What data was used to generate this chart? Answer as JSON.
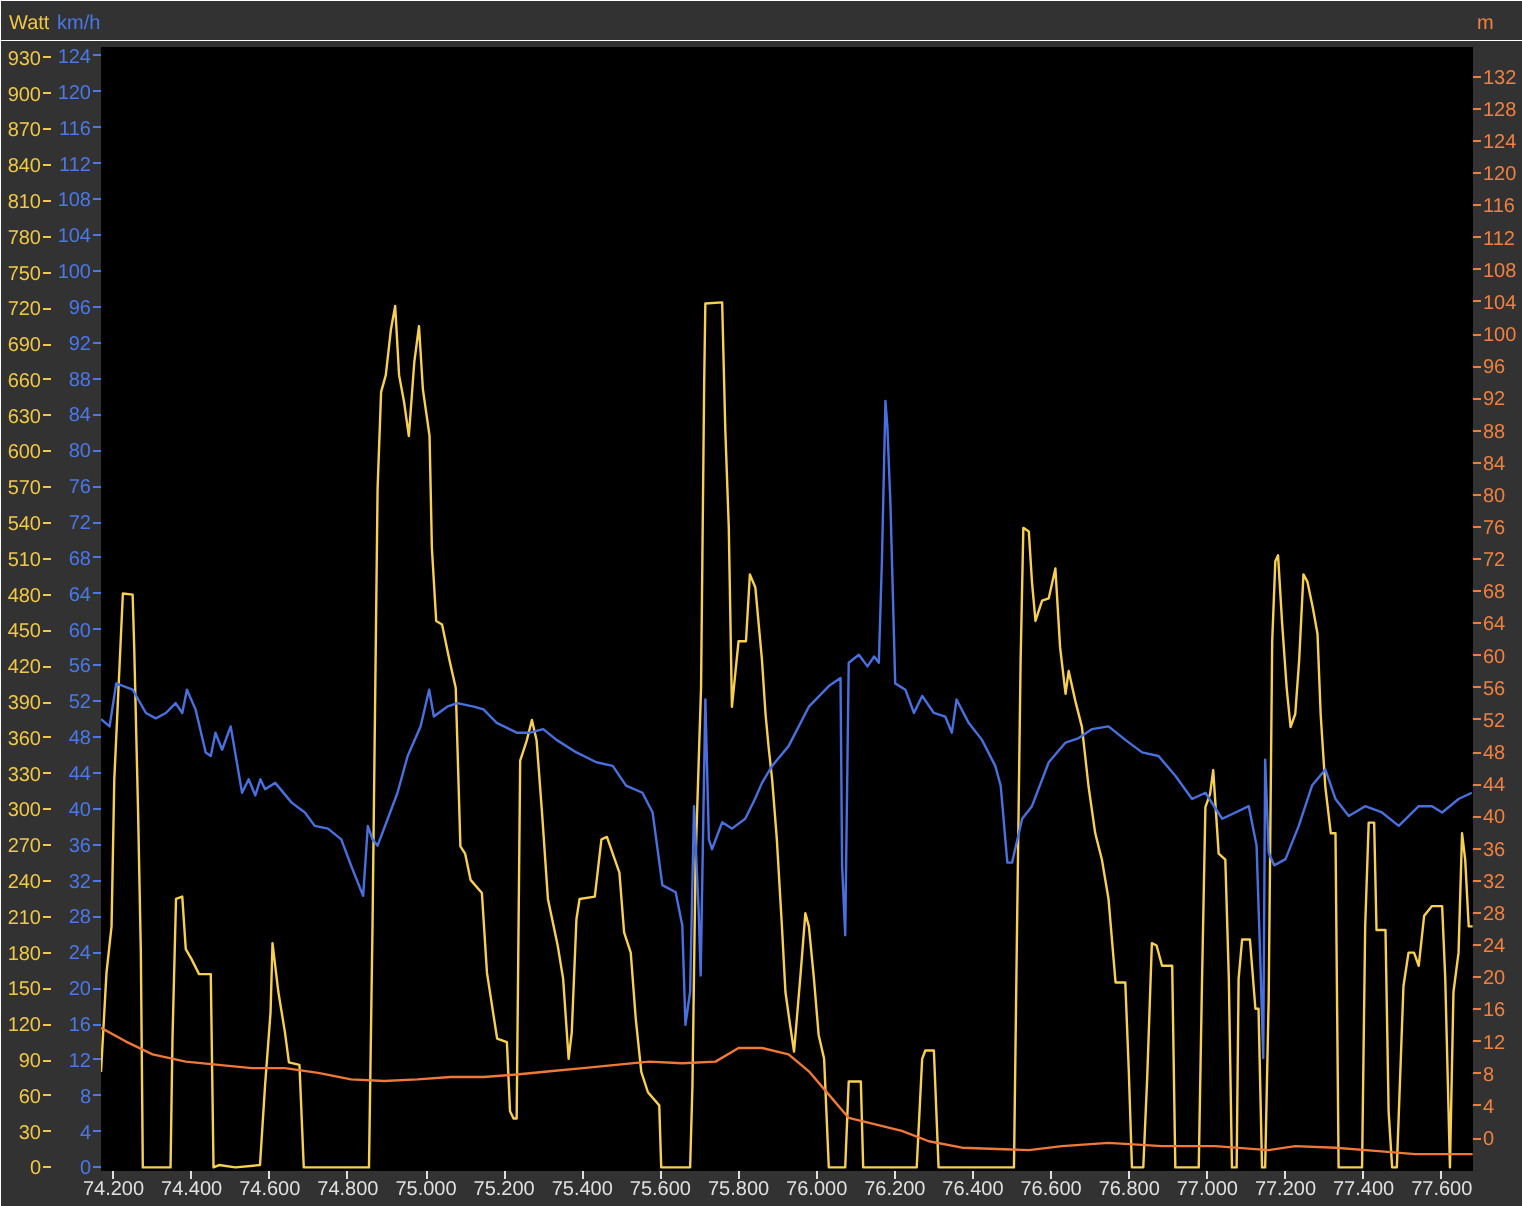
{
  "chart_data": {
    "type": "line",
    "ylabel": "Watt",
    "y2label": "km/h",
    "y3label": "m",
    "grid": false,
    "xlim": [
      74168,
      77680
    ],
    "xticks": [
      {
        "value": 74200,
        "label": "74.200"
      },
      {
        "value": 74400,
        "label": "74.400"
      },
      {
        "value": 74600,
        "label": "74.600"
      },
      {
        "value": 74800,
        "label": "74.800"
      },
      {
        "value": 75000,
        "label": "75.000"
      },
      {
        "value": 75200,
        "label": "75.200"
      },
      {
        "value": 75400,
        "label": "75.400"
      },
      {
        "value": 75600,
        "label": "75.600"
      },
      {
        "value": 75800,
        "label": "75.800"
      },
      {
        "value": 76000,
        "label": "76.000"
      },
      {
        "value": 76200,
        "label": "76.200"
      },
      {
        "value": 76400,
        "label": "76.400"
      },
      {
        "value": 76600,
        "label": "76.600"
      },
      {
        "value": 76800,
        "label": "76.800"
      },
      {
        "value": 77000,
        "label": "77.000"
      },
      {
        "value": 77200,
        "label": "77.200"
      },
      {
        "value": 77400,
        "label": "77.400"
      },
      {
        "value": 77600,
        "label": "77.600"
      }
    ],
    "ylim": [
      -3,
      939
    ],
    "yticks": [
      0,
      30,
      60,
      90,
      120,
      150,
      180,
      210,
      240,
      270,
      300,
      330,
      360,
      390,
      420,
      450,
      480,
      510,
      540,
      570,
      600,
      630,
      660,
      690,
      720,
      750,
      780,
      810,
      840,
      870,
      900,
      930
    ],
    "y2lim": [
      -0.4,
      125
    ],
    "y2ticks": [
      0,
      4,
      8,
      12,
      16,
      20,
      24,
      28,
      32,
      36,
      40,
      44,
      48,
      52,
      56,
      60,
      64,
      68,
      72,
      76,
      80,
      84,
      88,
      92,
      96,
      100,
      104,
      108,
      112,
      116,
      120,
      124
    ],
    "y3lim": [
      -4.1,
      135.7
    ],
    "y3ticks": [
      0,
      4,
      8,
      12,
      16,
      20,
      24,
      28,
      32,
      36,
      40,
      44,
      48,
      52,
      56,
      60,
      64,
      68,
      72,
      76,
      80,
      84,
      88,
      92,
      96,
      100,
      104,
      108,
      112,
      116,
      120,
      124,
      128,
      132
    ],
    "series": [
      {
        "axis": "y",
        "color": "#f8d050",
        "x": [
          74168,
          74182,
          74195,
          74202,
          74224,
          74249,
          74253,
          74263,
          74270,
          74275,
          74346,
          74351,
          74360,
          74376,
          74385,
          74399,
          74419,
          74449,
          74456,
          74470,
          74512,
          74575,
          74588,
          74602,
          74607,
          74622,
          74639,
          74649,
          74676,
          74687,
          74854,
          74863,
          74876,
          74885,
          74897,
          74910,
          74921,
          74931,
          74944,
          74956,
          74970,
          74982,
          74992,
          75009,
          75015,
          75026,
          75041,
          75060,
          75076,
          75088,
          75100,
          75114,
          75143,
          75156,
          75182,
          75207,
          75215,
          75224,
          75232,
          75241,
          75258,
          75271,
          75283,
          75297,
          75312,
          75337,
          75351,
          75365,
          75373,
          75385,
          75393,
          75432,
          75449,
          75463,
          75478,
          75495,
          75507,
          75524,
          75537,
          75551,
          75568,
          75597,
          75602,
          75676,
          75682,
          75690,
          75704,
          75712,
          75715,
          75758,
          75766,
          75775,
          75783,
          75800,
          75819,
          75829,
          75843,
          75860,
          75869,
          75877,
          75886,
          75898,
          75911,
          75920,
          75932,
          75942,
          75949,
          75959,
          75971,
          75980,
          75993,
          76005,
          76019,
          76031,
          76073,
          76082,
          76113,
          76119,
          76256,
          76270,
          76278,
          76300,
          76312,
          76505,
          76512,
          76522,
          76529,
          76543,
          76551,
          76560,
          76577,
          76594,
          76611,
          76623,
          76637,
          76645,
          76662,
          76679,
          76696,
          76713,
          76730,
          76747,
          76765,
          76790,
          76799,
          76807,
          76836,
          76846,
          76858,
          76870,
          76884,
          76910,
          76918,
          76978,
          76986,
          76995,
          77007,
          77015,
          77029,
          77046,
          77055,
          77063,
          77075,
          77080,
          77089,
          77109,
          77123,
          77131,
          77140,
          77148,
          77157,
          77166,
          77174,
          77181,
          77191,
          77203,
          77213,
          77225,
          77235,
          77246,
          77256,
          77270,
          77282,
          77290,
          77302,
          77316,
          77328,
          77336,
          77396,
          77404,
          77413,
          77427,
          77433,
          77456,
          77464,
          77473,
          77485,
          77502,
          77515,
          77529,
          77541,
          77555,
          77575,
          77601,
          77609,
          77621,
          77630,
          77643,
          77652,
          77660,
          77669,
          77679
        ],
        "values": [
          80,
          163,
          202,
          325,
          481,
          480,
          436,
          297,
          180,
          0,
          0,
          108,
          225,
          227,
          183,
          175,
          162,
          162,
          0,
          2,
          0,
          2,
          69,
          130,
          188,
          147,
          113,
          88,
          86,
          0,
          0,
          202,
          569,
          650,
          664,
          702,
          722,
          664,
          641,
          613,
          675,
          705,
          652,
          613,
          519,
          458,
          455,
          425,
          402,
          269,
          263,
          241,
          230,
          163,
          108,
          105,
          47,
          41,
          41,
          341,
          358,
          375,
          358,
          297,
          225,
          186,
          158,
          91,
          113,
          208,
          225,
          227,
          275,
          277,
          263,
          247,
          197,
          180,
          124,
          80,
          63,
          52,
          0,
          0,
          69,
          258,
          402,
          658,
          724,
          725,
          619,
          536,
          386,
          441,
          441,
          497,
          486,
          425,
          380,
          352,
          325,
          275,
          202,
          147,
          119,
          97,
          124,
          163,
          213,
          202,
          158,
          111,
          91,
          0,
          0,
          72,
          72,
          0,
          0,
          91,
          98,
          98,
          0,
          0,
          180,
          425,
          536,
          533,
          491,
          458,
          475,
          477,
          502,
          436,
          397,
          416,
          391,
          369,
          319,
          280,
          258,
          225,
          155,
          155,
          80,
          0,
          0,
          75,
          188,
          186,
          169,
          169,
          0,
          0,
          150,
          302,
          313,
          333,
          263,
          258,
          158,
          0,
          0,
          158,
          191,
          191,
          133,
          133,
          0,
          0,
          141,
          441,
          508,
          513,
          458,
          402,
          369,
          380,
          425,
          497,
          491,
          469,
          447,
          380,
          319,
          280,
          280,
          0,
          0,
          202,
          289,
          289,
          199,
          199,
          47,
          0,
          0,
          152,
          180,
          180,
          169,
          211,
          219,
          219,
          158,
          0,
          147,
          180,
          280,
          258,
          202,
          202
        ]
      },
      {
        "axis": "y2",
        "color": "#4a70e0",
        "x": [
          74168,
          74190,
          74207,
          74249,
          74283,
          74308,
          74334,
          74359,
          74376,
          74388,
          74410,
          74436,
          74449,
          74461,
          74478,
          74500,
          74529,
          74546,
          74563,
          74576,
          74588,
          74614,
          74656,
          74690,
          74715,
          74749,
          74783,
          74808,
          74839,
          74851,
          74863,
          74876,
          74902,
          74927,
          74953,
          74986,
          75008,
          75020,
          75054,
          75080,
          75122,
          75147,
          75181,
          75232,
          75266,
          75300,
          75334,
          75385,
          75436,
          75478,
          75512,
          75554,
          75580,
          75605,
          75639,
          75656,
          75664,
          75676,
          75686,
          75698,
          75703,
          75715,
          75724,
          75732,
          75758,
          75783,
          75817,
          75842,
          75860,
          75886,
          75928,
          75980,
          76031,
          76061,
          76065,
          76073,
          76082,
          76108,
          76130,
          76147,
          76159,
          76167,
          76176,
          76181,
          76189,
          76201,
          76227,
          76249,
          76270,
          76300,
          76329,
          76346,
          76358,
          76389,
          76423,
          76457,
          76471,
          76488,
          76500,
          76526,
          76551,
          76594,
          76637,
          76671,
          76705,
          76747,
          76790,
          76833,
          76875,
          76918,
          76961,
          76995,
          77038,
          77072,
          77106,
          77126,
          77137,
          77143,
          77148,
          77157,
          77171,
          77200,
          77234,
          77268,
          77302,
          77328,
          77362,
          77404,
          77447,
          77490,
          77541,
          77575,
          77601,
          77643,
          77677
        ],
        "values": [
          50.0,
          49.2,
          54.0,
          53.3,
          50.7,
          50.1,
          50.7,
          51.8,
          50.7,
          53.3,
          51.1,
          46.3,
          45.9,
          48.5,
          46.6,
          49.2,
          41.8,
          43.3,
          41.5,
          43.3,
          42.2,
          42.9,
          40.7,
          39.6,
          38.1,
          37.8,
          36.6,
          33.7,
          30.3,
          38.1,
          36.6,
          35.9,
          38.9,
          41.8,
          45.9,
          49.2,
          53.3,
          50.3,
          51.4,
          51.8,
          51.4,
          51.1,
          49.6,
          48.5,
          48.5,
          48.9,
          47.7,
          46.3,
          45.2,
          44.8,
          42.6,
          41.8,
          39.6,
          31.5,
          30.7,
          27.0,
          15.9,
          19.6,
          40.3,
          28.5,
          21.4,
          52.2,
          36.6,
          35.5,
          38.5,
          37.8,
          38.9,
          41.1,
          42.9,
          44.8,
          47.0,
          51.4,
          53.7,
          54.6,
          33.7,
          25.9,
          56.3,
          57.2,
          55.9,
          57.0,
          56.3,
          67.7,
          85.5,
          82.6,
          73.7,
          54.0,
          53.3,
          50.7,
          52.6,
          50.7,
          50.3,
          48.5,
          52.2,
          49.6,
          47.7,
          44.8,
          42.6,
          34.0,
          34.0,
          38.9,
          40.3,
          45.2,
          47.4,
          47.9,
          48.9,
          49.2,
          47.7,
          46.3,
          45.9,
          43.7,
          41.1,
          41.8,
          38.9,
          39.6,
          40.3,
          35.9,
          21.1,
          12.2,
          45.5,
          35.1,
          33.7,
          34.4,
          38.1,
          42.6,
          44.4,
          41.1,
          39.2,
          40.3,
          39.6,
          38.1,
          40.3,
          40.3,
          39.6,
          41.1,
          41.8
        ]
      },
      {
        "axis": "y3",
        "color": "#f07838",
        "x": [
          74168,
          74232,
          74300,
          74385,
          74469,
          74554,
          74639,
          74724,
          74808,
          74893,
          74978,
          75063,
          75147,
          75232,
          75317,
          75402,
          75486,
          75571,
          75656,
          75741,
          75800,
          75860,
          75928,
          75980,
          76031,
          76082,
          76150,
          76218,
          76287,
          76372,
          76543,
          76628,
          76747,
          76884,
          77020,
          77157,
          77225,
          77328,
          77430,
          77532,
          77679
        ],
        "values": [
          13.7,
          12.0,
          10.4,
          9.5,
          9.1,
          8.7,
          8.7,
          8.1,
          7.3,
          7.1,
          7.3,
          7.6,
          7.6,
          7.9,
          8.3,
          8.7,
          9.1,
          9.5,
          9.3,
          9.5,
          11.2,
          11.2,
          10.4,
          8.3,
          5.4,
          2.5,
          1.7,
          0.9,
          -0.4,
          -1.2,
          -1.5,
          -1.0,
          -0.6,
          -1.0,
          -1.0,
          -1.5,
          -1.0,
          -1.2,
          -1.6,
          -2.0,
          -2.0
        ]
      }
    ]
  }
}
